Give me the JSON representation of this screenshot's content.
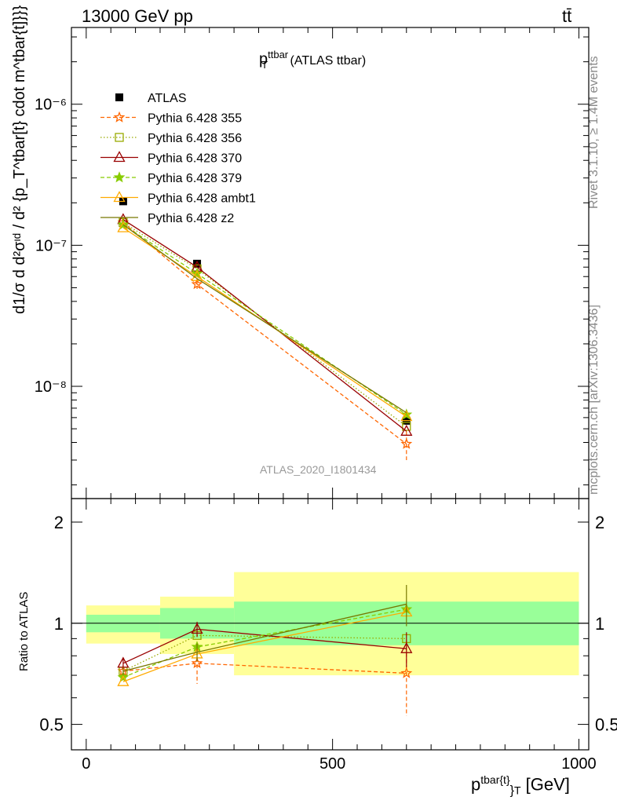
{
  "header": {
    "left": "13000 GeV pp",
    "right": "tt̄"
  },
  "side_text": {
    "rivet": "Rivet 3.1.10, ≥ 1.4M events",
    "mcplots": "mcplots.cern.ch [arXiv:1306.3436]"
  },
  "main_title": {
    "main": "p",
    "sup": "ttbar",
    "sub": "T",
    "rest": " (ATLAS ttbar)"
  },
  "analysis_id": "ATLAS_2020_I1801434",
  "upper_ylabel": "d1/σ d d²σᶦᵈ / d² {p_T^tbar[t} cdot m^tbar{t]}}} [1/GeV²]",
  "lower_ylabel": "Ratio to ATLAS",
  "xlabel": "p^{tbar{t}}_T [GeV]",
  "xlabel_parts": {
    "main": "p",
    "sup": "tbar{t}",
    "sub": "}",
    "subT": "T",
    "rest": " [GeV]"
  },
  "colors": {
    "data": "#000000",
    "p355": "#ff6600",
    "p356": "#99aa00",
    "p370": "#990000",
    "p379": "#88cc00",
    "ambt1": "#ffaa00",
    "z2": "#777700",
    "band_inner": "#99ff99",
    "band_outer": "#ffff99"
  },
  "chart_data": [
    {
      "type": "scatter",
      "panel": "main",
      "x_scale": "linear",
      "y_scale": "log",
      "xlim": [
        -30,
        1020
      ],
      "ylim": [
        1.6e-09,
        3.5e-06
      ],
      "ytick_labels": [
        "10⁻⁸",
        "10⁻⁷",
        "10⁻⁶"
      ],
      "ytick_values": [
        1e-08,
        1e-07,
        1e-06
      ],
      "x": [
        75,
        225,
        650
      ],
      "series": [
        {
          "name": "ATLAS",
          "key": "data",
          "values": [
            2.05e-07,
            7.4e-08,
            5.7e-09
          ],
          "style": "square-filled"
        },
        {
          "name": "Pythia 6.428 355",
          "key": "p355",
          "values": [
            1.45e-07,
            5.3e-08,
            3.9e-09
          ],
          "err": [
            0,
            4e-09,
            9e-10
          ],
          "style": "star-dash"
        },
        {
          "name": "Pythia 6.428 356",
          "key": "p356",
          "values": [
            1.45e-07,
            6.8e-08,
            5.2e-09
          ],
          "style": "square-open-dot"
        },
        {
          "name": "Pythia 6.428 370",
          "key": "p370",
          "values": [
            1.52e-07,
            7e-08,
            4.8e-09
          ],
          "style": "triangle-open-solid"
        },
        {
          "name": "Pythia 6.428 379",
          "key": "p379",
          "values": [
            1.4e-07,
            6.3e-08,
            6.3e-09
          ],
          "style": "star-dash-green"
        },
        {
          "name": "Pythia 6.428 ambt1",
          "key": "ambt1",
          "values": [
            1.33e-07,
            6e-08,
            6.1e-09
          ],
          "style": "triangle-open-solid"
        },
        {
          "name": "Pythia 6.428 z2",
          "key": "z2",
          "values": [
            1.4e-07,
            5.8e-08,
            6.5e-09
          ],
          "style": "line"
        }
      ]
    },
    {
      "type": "scatter",
      "panel": "ratio",
      "x_scale": "linear",
      "y_scale": "log",
      "xlim": [
        -30,
        1020
      ],
      "ylim": [
        0.42,
        2.35
      ],
      "ytick_labels": [
        "0.5",
        "1",
        "2"
      ],
      "ytick_values": [
        0.5,
        1,
        2
      ],
      "xtick_labels": [
        "0",
        "500",
        "1000"
      ],
      "xtick_values": [
        0,
        500,
        1000
      ],
      "x": [
        75,
        225,
        650
      ],
      "bands": [
        {
          "x0": 0,
          "x1": 150,
          "inner": [
            0.94,
            1.06
          ],
          "outer": [
            0.87,
            1.13
          ]
        },
        {
          "x0": 150,
          "x1": 300,
          "inner": [
            0.9,
            1.11
          ],
          "outer": [
            0.81,
            1.2
          ]
        },
        {
          "x0": 300,
          "x1": 1000,
          "inner": [
            0.86,
            1.16
          ],
          "outer": [
            0.7,
            1.42
          ]
        }
      ],
      "series": [
        {
          "name": "Pythia 6.428 355",
          "key": "p355",
          "values": [
            0.72,
            0.76,
            0.71
          ],
          "err": [
            0.03,
            0.1,
            0.18
          ]
        },
        {
          "name": "Pythia 6.428 356",
          "key": "p356",
          "values": [
            0.72,
            0.92,
            0.9
          ]
        },
        {
          "name": "Pythia 6.428 370",
          "key": "p370",
          "values": [
            0.76,
            0.96,
            0.84
          ],
          "err": [
            0.03,
            0.05,
            0.1
          ]
        },
        {
          "name": "Pythia 6.428 379",
          "key": "p379",
          "values": [
            0.69,
            0.85,
            1.1
          ]
        },
        {
          "name": "Pythia 6.428 ambt1",
          "key": "ambt1",
          "values": [
            0.67,
            0.81,
            1.08
          ]
        },
        {
          "name": "Pythia 6.428 z2",
          "key": "z2",
          "values": [
            0.72,
            0.82,
            1.14
          ],
          "err": [
            0.02,
            0.05,
            0.16
          ]
        }
      ]
    }
  ]
}
